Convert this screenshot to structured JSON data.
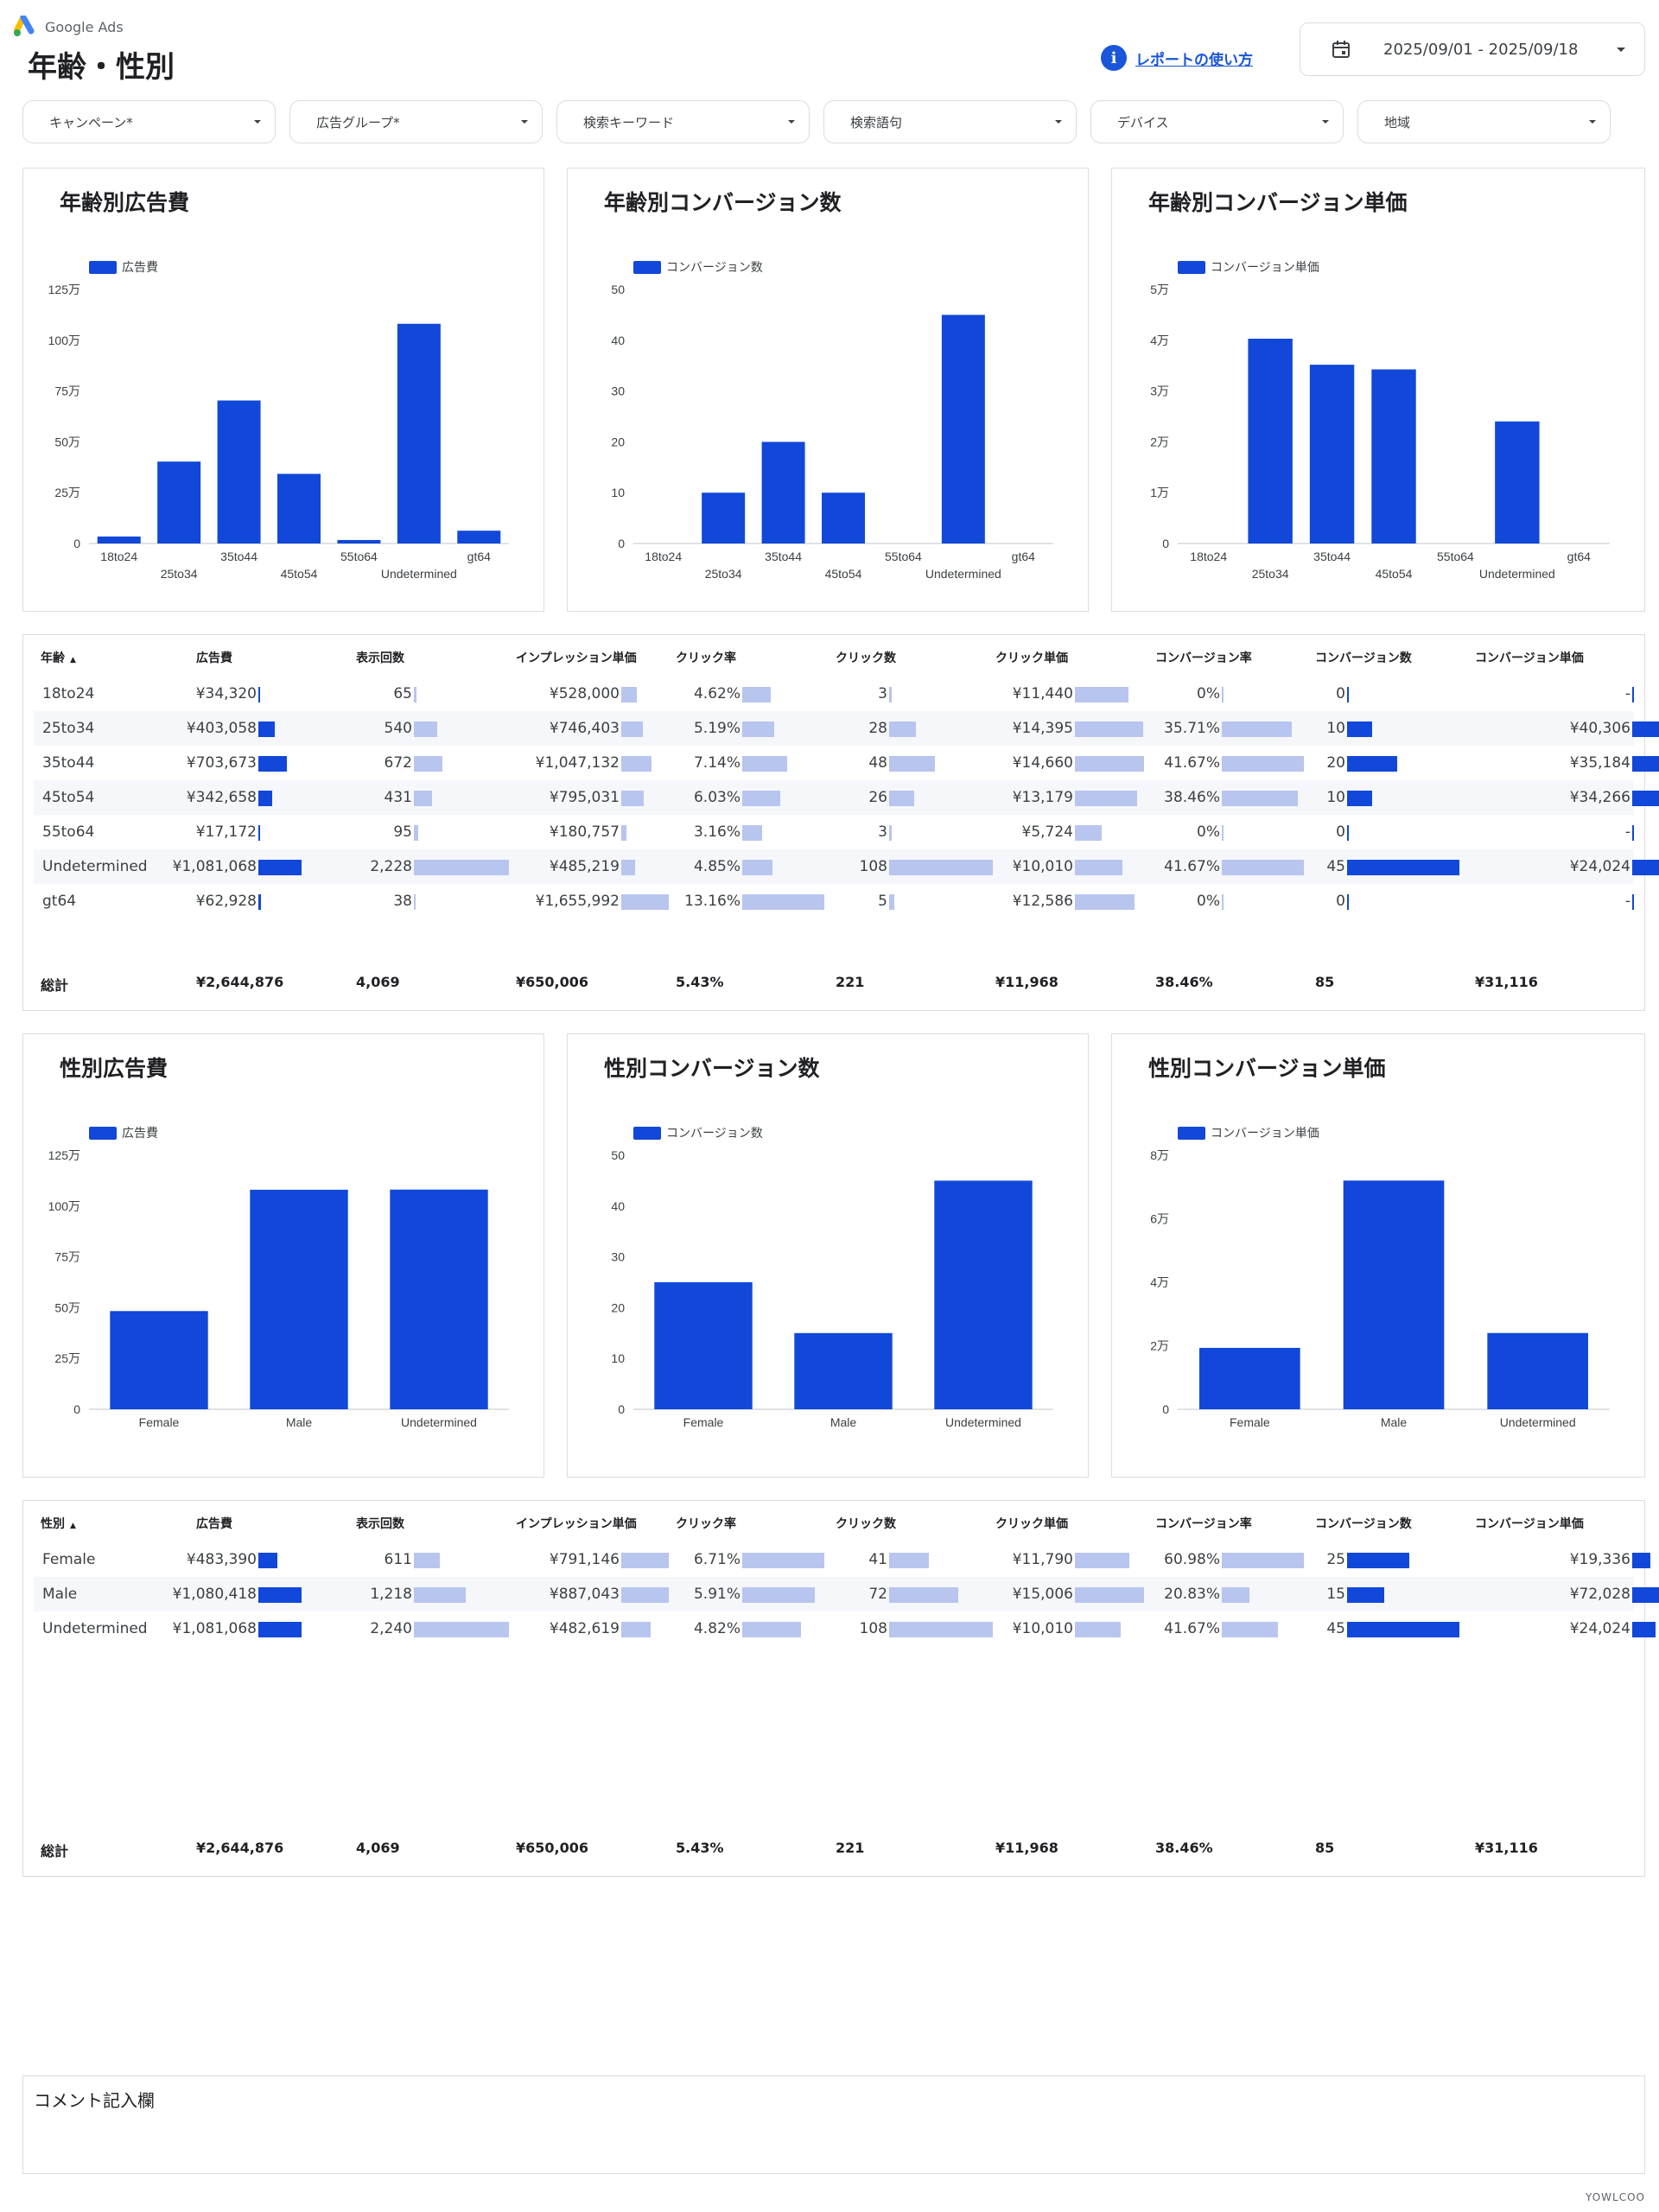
{
  "header": {
    "logo_text": "Google Ads",
    "title": "年齢・性別",
    "help_link": "レポートの使い方",
    "date_range": "2025/09/01 - 2025/09/18"
  },
  "filters": [
    "キャンペーン*",
    "広告グループ*",
    "検索キーワード",
    "検索語句",
    "デバイス",
    "地域"
  ],
  "colors": {
    "bar": "#1148d9",
    "bar_light": "#b8c5ee",
    "alt_row": "#f6f7fb"
  },
  "chart_data": [
    {
      "type": "bar",
      "title": "年齢別広告費",
      "legend": "広告費",
      "categories": [
        "18to24",
        "25to34",
        "35to44",
        "45to54",
        "55to64",
        "Undetermined",
        "gt64"
      ],
      "values": [
        34320,
        403058,
        703673,
        342658,
        17172,
        1081068,
        62928
      ],
      "ylim": [
        0,
        1250000
      ],
      "yticks": [
        0,
        250000,
        500000,
        750000,
        1000000,
        1250000
      ],
      "yticklabels": [
        "0",
        "25万",
        "50万",
        "75万",
        "100万",
        "125万"
      ]
    },
    {
      "type": "bar",
      "title": "年齢別コンバージョン数",
      "legend": "コンバージョン数",
      "categories": [
        "18to24",
        "25to34",
        "35to44",
        "45to54",
        "55to64",
        "Undetermined",
        "gt64"
      ],
      "values": [
        0,
        10,
        20,
        10,
        0,
        45,
        0
      ],
      "ylim": [
        0,
        50
      ],
      "yticks": [
        0,
        10,
        20,
        30,
        40,
        50
      ],
      "yticklabels": [
        "0",
        "10",
        "20",
        "30",
        "40",
        "50"
      ]
    },
    {
      "type": "bar",
      "title": "年齢別コンバージョン単価",
      "legend": "コンバージョン単価",
      "categories": [
        "18to24",
        "25to34",
        "35to44",
        "45to54",
        "55to64",
        "Undetermined",
        "gt64"
      ],
      "values": [
        0,
        40306,
        35184,
        34266,
        0,
        24024,
        0
      ],
      "ylim": [
        0,
        50000
      ],
      "yticks": [
        0,
        10000,
        20000,
        30000,
        40000,
        50000
      ],
      "yticklabels": [
        "0",
        "1万",
        "2万",
        "3万",
        "4万",
        "5万"
      ]
    },
    {
      "type": "bar",
      "title": "性別広告費",
      "legend": "広告費",
      "categories": [
        "Female",
        "Male",
        "Undetermined"
      ],
      "values": [
        483390,
        1080418,
        1081068
      ],
      "ylim": [
        0,
        1250000
      ],
      "yticks": [
        0,
        250000,
        500000,
        750000,
        1000000,
        1250000
      ],
      "yticklabels": [
        "0",
        "25万",
        "50万",
        "75万",
        "100万",
        "125万"
      ]
    },
    {
      "type": "bar",
      "title": "性別コンバージョン数",
      "legend": "コンバージョン数",
      "categories": [
        "Female",
        "Male",
        "Undetermined"
      ],
      "values": [
        25,
        15,
        45
      ],
      "ylim": [
        0,
        50
      ],
      "yticks": [
        0,
        10,
        20,
        30,
        40,
        50
      ],
      "yticklabels": [
        "0",
        "10",
        "20",
        "30",
        "40",
        "50"
      ]
    },
    {
      "type": "bar",
      "title": "性別コンバージョン単価",
      "legend": "コンバージョン単価",
      "categories": [
        "Female",
        "Male",
        "Undetermined"
      ],
      "values": [
        19336,
        72028,
        24024
      ],
      "ylim": [
        0,
        80000
      ],
      "yticks": [
        0,
        20000,
        40000,
        60000,
        80000
      ],
      "yticklabels": [
        "0",
        "2万",
        "4万",
        "6万",
        "8万"
      ]
    }
  ],
  "age_table": {
    "headers": [
      "年齢",
      "広告費",
      "表示回数",
      "インプレッション単価",
      "クリック率",
      "クリック数",
      "クリック単価",
      "コンバージョン率",
      "コンバージョン数",
      "コンバージョン単価"
    ],
    "sort_indicator": "▲",
    "rows": [
      {
        "name": "18to24",
        "cells": [
          "¥34,320",
          "65",
          "¥528,000",
          "4.62%",
          "3",
          "¥11,440",
          "0%",
          "0",
          "-"
        ],
        "bars": [
          0.032,
          0.029,
          0.319,
          0.351,
          0.028,
          0.78,
          0,
          0,
          0
        ]
      },
      {
        "name": "25to34",
        "cells": [
          "¥403,058",
          "540",
          "¥746,403",
          "5.19%",
          "28",
          "¥14,395",
          "35.71%",
          "10",
          "¥40,306"
        ],
        "bars": [
          0.373,
          0.242,
          0.451,
          0.394,
          0.259,
          0.982,
          0.857,
          0.222,
          1.0
        ]
      },
      {
        "name": "35to44",
        "cells": [
          "¥703,673",
          "672",
          "¥1,047,132",
          "7.14%",
          "48",
          "¥14,660",
          "41.67%",
          "20",
          "¥35,184"
        ],
        "bars": [
          0.651,
          0.302,
          0.632,
          0.543,
          0.444,
          1.0,
          1.0,
          0.444,
          0.873
        ]
      },
      {
        "name": "45to54",
        "cells": [
          "¥342,658",
          "431",
          "¥795,031",
          "6.03%",
          "26",
          "¥13,179",
          "38.46%",
          "10",
          "¥34,266"
        ],
        "bars": [
          0.317,
          0.193,
          0.48,
          0.458,
          0.241,
          0.899,
          0.923,
          0.222,
          0.85
        ]
      },
      {
        "name": "55to64",
        "cells": [
          "¥17,172",
          "95",
          "¥180,757",
          "3.16%",
          "3",
          "¥5,724",
          "0%",
          "0",
          "-"
        ],
        "bars": [
          0.016,
          0.043,
          0.109,
          0.24,
          0.028,
          0.39,
          0,
          0,
          0
        ]
      },
      {
        "name": "Undetermined",
        "cells": [
          "¥1,081,068",
          "2,228",
          "¥485,219",
          "4.85%",
          "108",
          "¥10,010",
          "41.67%",
          "45",
          "¥24,024"
        ],
        "bars": [
          1.0,
          1.0,
          0.293,
          0.369,
          1.0,
          0.683,
          1.0,
          1.0,
          0.596
        ]
      },
      {
        "name": "gt64",
        "cells": [
          "¥62,928",
          "38",
          "¥1,655,992",
          "13.16%",
          "5",
          "¥12,586",
          "0%",
          "0",
          "-"
        ],
        "bars": [
          0.058,
          0.017,
          1.0,
          1.0,
          0.046,
          0.859,
          0,
          0,
          0
        ]
      }
    ],
    "total_label": "総計",
    "totals": [
      "¥2,644,876",
      "4,069",
      "¥650,006",
      "5.43%",
      "221",
      "¥11,968",
      "38.46%",
      "85",
      "¥31,116"
    ]
  },
  "gender_table": {
    "headers": [
      "性別",
      "広告費",
      "表示回数",
      "インプレッション単価",
      "クリック率",
      "クリック数",
      "クリック単価",
      "コンバージョン率",
      "コンバージョン数",
      "コンバージョン単価"
    ],
    "sort_indicator": "▲",
    "rows": [
      {
        "name": "Female",
        "cells": [
          "¥483,390",
          "611",
          "¥791,146",
          "6.71%",
          "41",
          "¥11,790",
          "60.98%",
          "25",
          "¥19,336"
        ],
        "bars": [
          0.447,
          0.273,
          1.0,
          1.0,
          0.38,
          0.786,
          1.0,
          0.556,
          0.268
        ]
      },
      {
        "name": "Male",
        "cells": [
          "¥1,080,418",
          "1,218",
          "¥887,043",
          "5.91%",
          "72",
          "¥15,006",
          "20.83%",
          "15",
          "¥72,028"
        ],
        "bars": [
          0.999,
          0.544,
          1.0,
          0.881,
          0.667,
          1.0,
          0.342,
          0.333,
          1.0
        ]
      },
      {
        "name": "Undetermined",
        "cells": [
          "¥1,081,068",
          "2,240",
          "¥482,619",
          "4.82%",
          "108",
          "¥10,010",
          "41.67%",
          "45",
          "¥24,024"
        ],
        "bars": [
          1.0,
          1.0,
          0.61,
          0.718,
          1.0,
          0.667,
          0.683,
          1.0,
          0.334
        ]
      }
    ],
    "total_label": "総計",
    "totals": [
      "¥2,644,876",
      "4,069",
      "¥650,006",
      "5.43%",
      "221",
      "¥11,968",
      "38.46%",
      "85",
      "¥31,116"
    ]
  },
  "comment": {
    "label": "コメント記入欄"
  },
  "footer": {
    "mark": "YOWLCOO"
  }
}
